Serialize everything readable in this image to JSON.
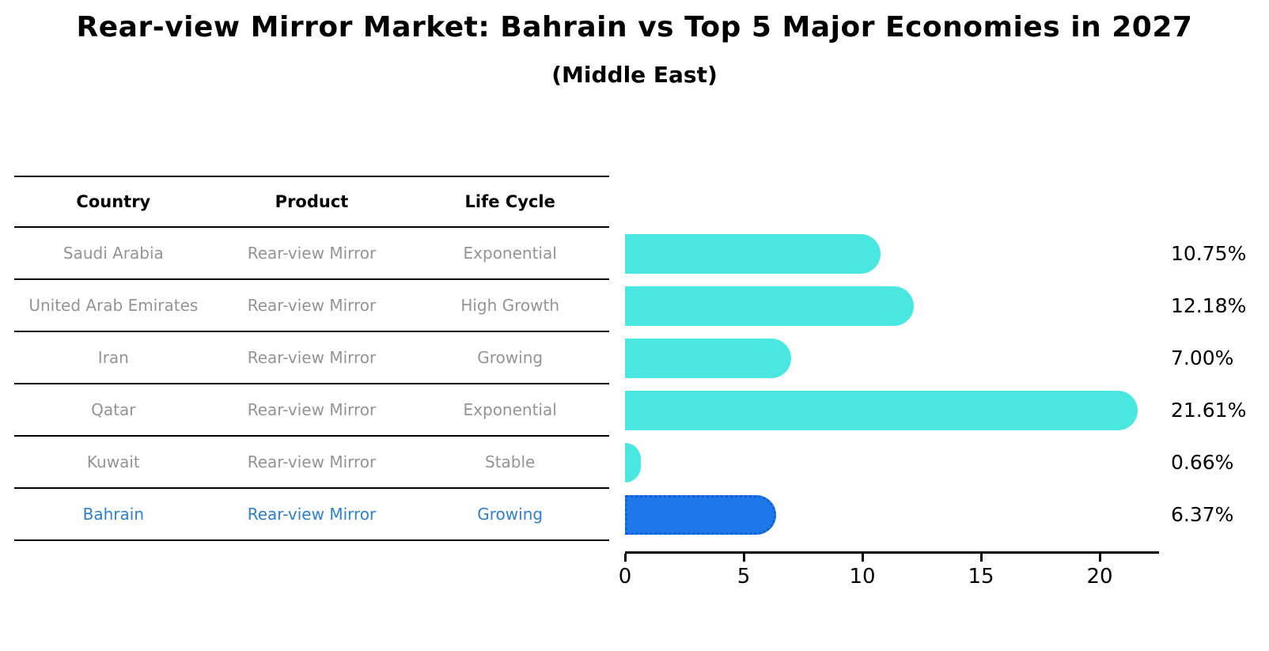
{
  "title": "Rear-view Mirror Market: Bahrain vs Top 5 Major Economies in 2027",
  "subtitle": "(Middle East)",
  "table": {
    "headers": [
      "Country",
      "Product",
      "Life Cycle"
    ],
    "rows": [
      {
        "country": "Saudi Arabia",
        "product": "Rear-view Mirror",
        "life_cycle": "Exponential",
        "highlighted": false
      },
      {
        "country": "United Arab Emirates",
        "product": "Rear-view Mirror",
        "life_cycle": "High Growth",
        "highlighted": false
      },
      {
        "country": "Iran",
        "product": "Rear-view Mirror",
        "life_cycle": "Growing",
        "highlighted": false
      },
      {
        "country": "Qatar",
        "product": "Rear-view Mirror",
        "life_cycle": "Exponential",
        "highlighted": false
      },
      {
        "country": "Kuwait",
        "product": "Rear-view Mirror",
        "life_cycle": "Stable",
        "highlighted": false
      },
      {
        "country": "Bahrain",
        "product": "Rear-view Mirror",
        "life_cycle": "Growing",
        "highlighted": true
      }
    ]
  },
  "chart_data": {
    "type": "bar",
    "orientation": "horizontal",
    "title": "Rear-view Mirror Market: Bahrain vs Top 5 Major Economies in 2027 (Middle East)",
    "categories": [
      "Saudi Arabia",
      "United Arab Emirates",
      "Iran",
      "Qatar",
      "Kuwait",
      "Bahrain"
    ],
    "values": [
      10.75,
      12.18,
      7.0,
      21.61,
      0.66,
      6.37
    ],
    "value_labels": [
      "10.75%",
      "12.18%",
      "7.00%",
      "21.61%",
      "0.66%",
      "6.37%"
    ],
    "unit": "%",
    "xlabel": "",
    "ylabel": "",
    "xlim": [
      0,
      22.5
    ],
    "x_ticks": [
      0,
      5,
      10,
      15,
      20
    ],
    "grid": false,
    "legend": false,
    "bar_color": "#4ae7e1",
    "highlight_index": 5,
    "highlight_color": "#1e78e8",
    "highlight_border_color": "#0e5fd8",
    "highlight_text_color": "#2d80cb"
  }
}
